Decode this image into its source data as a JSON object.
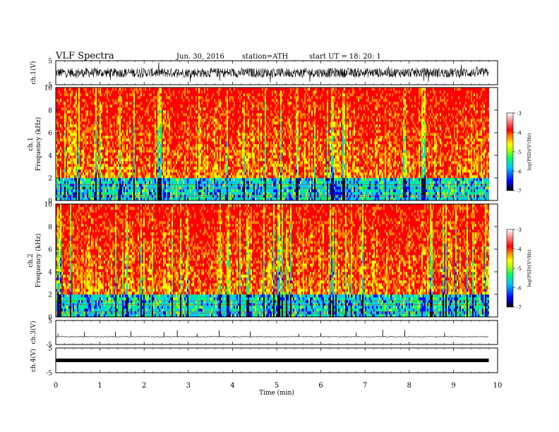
{
  "header": {
    "title": "VLF  Spectra",
    "date": "Jun. 30, 2016",
    "station": "station=ATH",
    "start": "start  UT =   18: 20: 1"
  },
  "colorbar": {
    "label": "log(PSD)(V²/Hz)",
    "ticks": [
      "-3",
      "-4",
      "-5",
      "-6",
      "-7"
    ],
    "range": [
      -7,
      -3
    ],
    "colors": [
      "#000000",
      "#0000ff",
      "#00c8ff",
      "#00ff64",
      "#b4ff00",
      "#ffff00",
      "#ff7f00",
      "#ff0000",
      "#ffffff"
    ]
  },
  "chart_data": [
    {
      "type": "line",
      "ylabel": "ch.1(V)",
      "ylim": [
        -5,
        5
      ],
      "yticks": [
        "5",
        "-5"
      ],
      "description_values": {
        "center": 0,
        "envelope": [
          -2,
          2
        ]
      }
    },
    {
      "type": "heatmap",
      "ylabel": "Frequency (kHz)",
      "channel": "ch.1",
      "ylim": [
        0,
        10
      ],
      "yticks": [
        "0",
        "2",
        "4",
        "6",
        "8",
        "10"
      ],
      "dominant_level": -4,
      "low_band_kHz": [
        0,
        2
      ],
      "low_band_level": -5.3
    },
    {
      "type": "heatmap",
      "ylabel": "Frequency (kHz)",
      "channel": "ch.2",
      "ylim": [
        0,
        10
      ],
      "yticks": [
        "0",
        "2",
        "4",
        "6",
        "8",
        "10"
      ],
      "dominant_level": -4,
      "low_band_kHz": [
        0,
        2
      ],
      "low_band_level": -5.3
    },
    {
      "type": "line",
      "ylabel": "ch.3(V)",
      "ylim": [
        -5,
        5
      ],
      "yticks": [
        "5",
        "-5"
      ],
      "baseline": 0,
      "spike_times_min": [
        0.05,
        0.65,
        1.35,
        1.7,
        2.45,
        2.75,
        3.2,
        3.7,
        4.4,
        5.5,
        6.0,
        6.8,
        7.4,
        7.9,
        8.8
      ]
    },
    {
      "type": "line",
      "ylabel": "ch.4(V)",
      "ylim": [
        -5,
        5
      ],
      "yticks": [
        "5",
        "-5"
      ],
      "constant_value": 0
    }
  ],
  "xaxis": {
    "label": "Time (min)",
    "ticks": [
      "0",
      "1",
      "2",
      "3",
      "4",
      "5",
      "6",
      "7",
      "8",
      "9",
      "10"
    ],
    "xlim": [
      0,
      10
    ],
    "data_end": 9.8
  }
}
